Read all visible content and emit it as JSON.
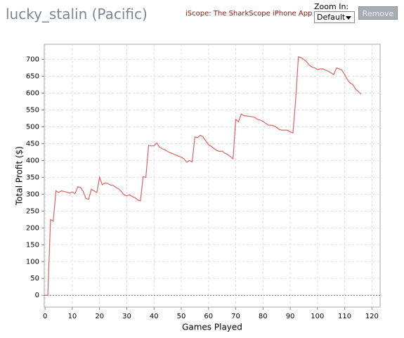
{
  "header": {
    "title": "lucky_stalin (Pacific)",
    "link": "iScope: The SharkScope iPhone App",
    "zoom_label": "Zoom In:",
    "zoom_value": "Default",
    "button": "Remove"
  },
  "chart_data": {
    "type": "line",
    "x_label": "Games Played",
    "y_label": "Total Profit ($)",
    "x": [
      0,
      1,
      2,
      3,
      4,
      5,
      6,
      7,
      8,
      9,
      10,
      11,
      12,
      13,
      14,
      15,
      16,
      17,
      18,
      19,
      20,
      21,
      22,
      23,
      24,
      25,
      26,
      27,
      28,
      29,
      30,
      31,
      32,
      33,
      34,
      35,
      36,
      37,
      38,
      39,
      40,
      41,
      42,
      43,
      44,
      45,
      46,
      47,
      48,
      49,
      50,
      51,
      52,
      53,
      54,
      55,
      56,
      57,
      58,
      59,
      60,
      61,
      62,
      63,
      64,
      65,
      66,
      67,
      68,
      69,
      70,
      71,
      72,
      73,
      74,
      75,
      76,
      77,
      78,
      79,
      80,
      81,
      82,
      83,
      84,
      85,
      86,
      87,
      88,
      89,
      90,
      91,
      92,
      93,
      94,
      95,
      96,
      97,
      98,
      99,
      100,
      101,
      102,
      103,
      104,
      105,
      106,
      107,
      108,
      109,
      110,
      111,
      112,
      113,
      114,
      115,
      116
    ],
    "series": [
      {
        "name": "Total Profit",
        "color": "#e06060",
        "values": [
          0,
          0,
          225,
          220,
          310,
          305,
          310,
          308,
          306,
          303,
          307,
          302,
          322,
          320,
          308,
          287,
          285,
          315,
          310,
          305,
          350,
          328,
          333,
          332,
          327,
          326,
          320,
          316,
          308,
          298,
          295,
          298,
          293,
          290,
          283,
          280,
          352,
          350,
          445,
          443,
          444,
          452,
          440,
          435,
          432,
          427,
          423,
          420,
          416,
          413,
          410,
          405,
          395,
          400,
          396,
          470,
          468,
          475,
          470,
          458,
          447,
          442,
          436,
          430,
          427,
          428,
          422,
          418,
          412,
          405,
          522,
          515,
          538,
          533,
          532,
          531,
          530,
          528,
          522,
          520,
          516,
          510,
          505,
          505,
          503,
          498,
          492,
          490,
          490,
          490,
          485,
          482,
          580,
          708,
          705,
          700,
          693,
          683,
          677,
          675,
          670,
          672,
          672,
          668,
          665,
          660,
          655,
          675,
          672,
          668,
          655,
          640,
          630,
          625,
          612,
          605,
          597
        ]
      }
    ],
    "xlim": [
      -0.3,
      123
    ],
    "ylim": [
      -35,
      745
    ],
    "xticks": [
      0,
      10,
      20,
      30,
      40,
      50,
      60,
      70,
      80,
      90,
      100,
      110,
      120
    ],
    "yticks": [
      0,
      50,
      100,
      150,
      200,
      250,
      300,
      350,
      400,
      450,
      500,
      550,
      600,
      650,
      700
    ],
    "grid": true
  }
}
